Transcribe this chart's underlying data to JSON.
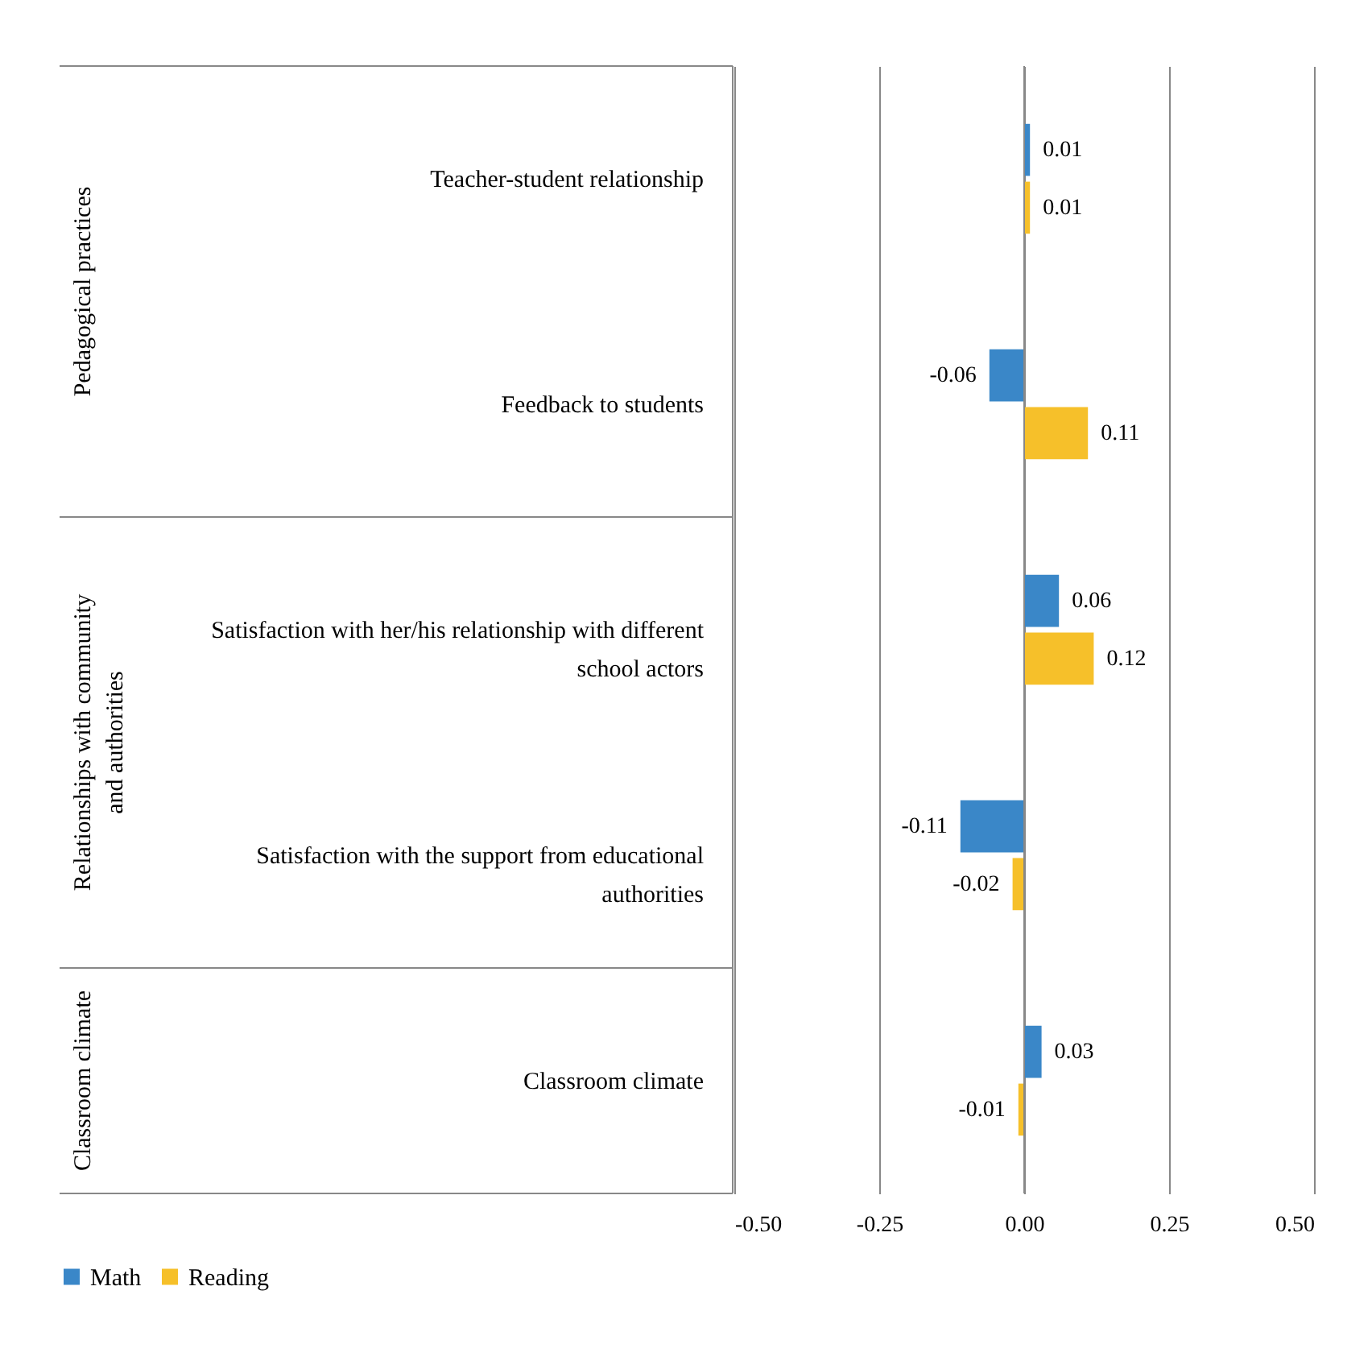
{
  "chart_data": {
    "type": "bar",
    "orientation": "horizontal",
    "categories": [
      "Teacher-student relationship",
      "Feedback to students",
      "Satisfaction with her/his relationship with different school actors",
      "Satisfaction with the support from educational authorities",
      "Classroom climate"
    ],
    "series": [
      {
        "name": "Math",
        "color": "#3a87c8",
        "values": [
          0.01,
          -0.06,
          0.06,
          -0.11,
          0.03
        ]
      },
      {
        "name": "Reading",
        "color": "#f6c02a",
        "values": [
          0.01,
          0.11,
          0.12,
          -0.02,
          -0.01
        ]
      }
    ],
    "annotations": [
      "Pedagogical practices",
      "Relationships with community and authorities",
      "Classroom climate"
    ],
    "xlim": [
      -0.5,
      0.5
    ],
    "xticks": [
      {
        "value": -0.5,
        "label": "-0.50"
      },
      {
        "value": -0.25,
        "label": "-0.25"
      },
      {
        "value": 0,
        "label": "0.00"
      },
      {
        "value": 0.25,
        "label": "0.25"
      },
      {
        "value": 0.5,
        "label": "0.50"
      }
    ],
    "grid": "x",
    "legend": "bottom",
    "data_labels": true
  }
}
